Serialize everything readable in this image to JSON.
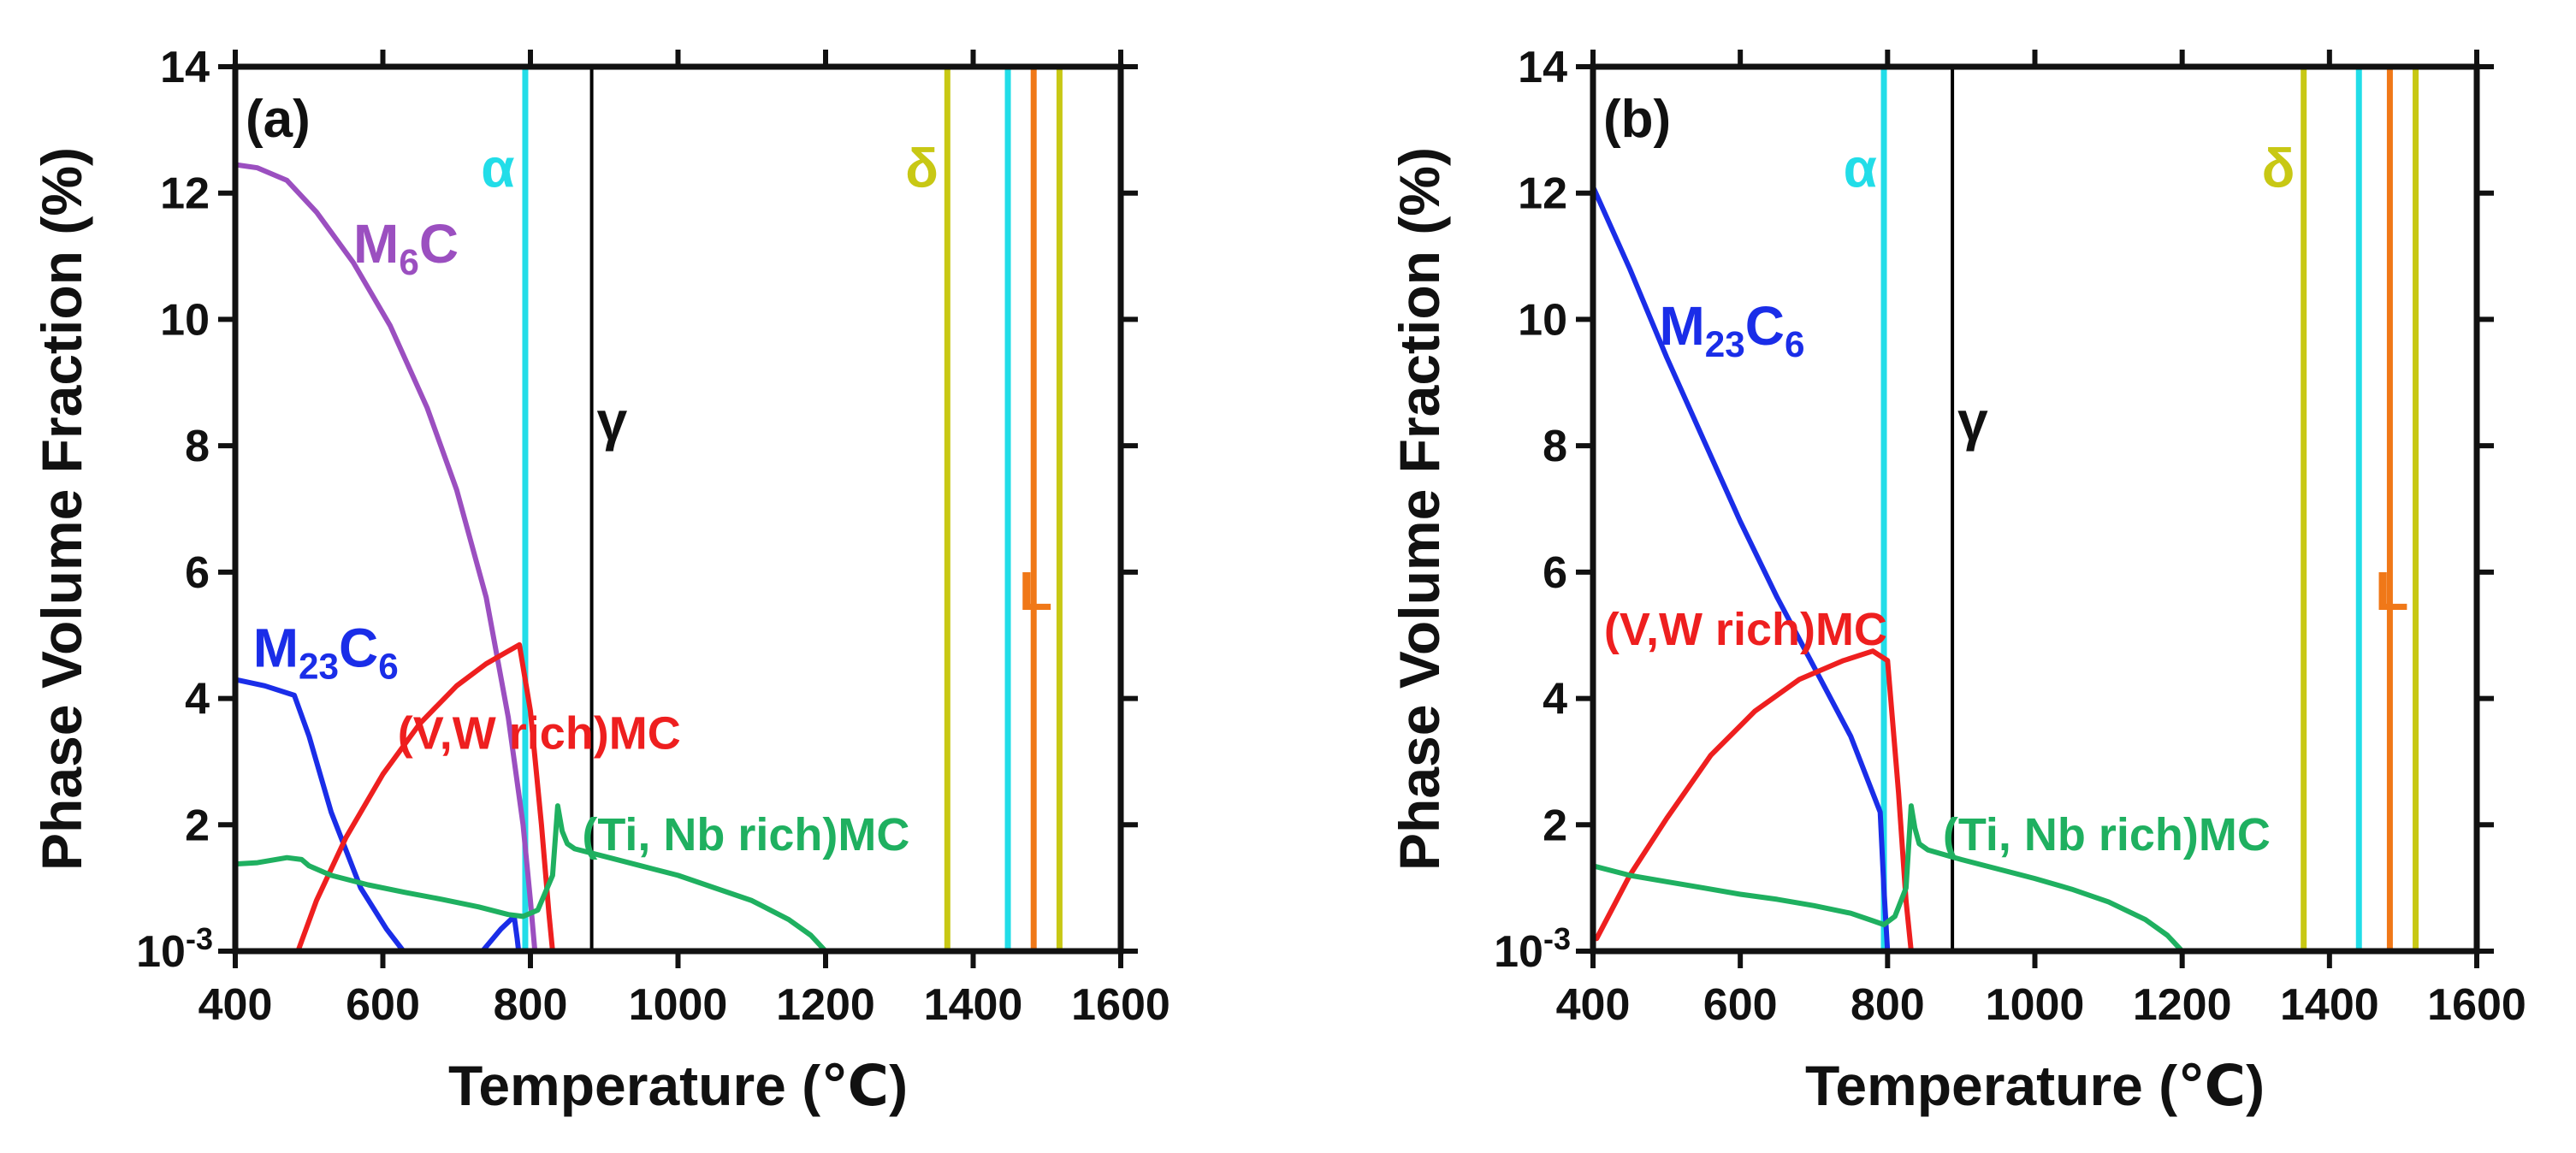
{
  "chart_data": [
    {
      "type": "line",
      "panel": "(a)",
      "xlabel": "Temperature (℃)",
      "ylabel": "Phase Volume Fraction (%)",
      "xlim": [
        400,
        1600
      ],
      "ylim": [
        0,
        14
      ],
      "x_ticks": [
        400,
        600,
        800,
        1000,
        1200,
        1400,
        1600
      ],
      "y_ticks": [
        {
          "value": 0,
          "label": "10",
          "sup": "-3"
        },
        {
          "value": 2,
          "label": "2"
        },
        {
          "value": 4,
          "label": "4"
        },
        {
          "value": 6,
          "label": "6"
        },
        {
          "value": 8,
          "label": "8"
        },
        {
          "value": 10,
          "label": "10"
        },
        {
          "value": 12,
          "label": "12"
        },
        {
          "value": 14,
          "label": "14"
        }
      ],
      "series": [
        {
          "name": "M6C",
          "color": "#9b4fc0",
          "x": [
            400,
            430,
            470,
            510,
            560,
            610,
            660,
            700,
            740,
            770,
            790,
            800,
            806
          ],
          "y": [
            12.45,
            12.4,
            12.2,
            11.7,
            10.9,
            9.9,
            8.6,
            7.3,
            5.6,
            3.7,
            2.0,
            0.8,
            0
          ]
        },
        {
          "name": "M23C6",
          "color": "#1a2de8",
          "x": [
            400,
            440,
            480,
            500,
            530,
            570,
            605,
            628
          ],
          "y": [
            4.3,
            4.2,
            4.05,
            3.4,
            2.2,
            1.0,
            0.35,
            0
          ]
        },
        {
          "name": "M23C6 (high-T segment)",
          "color": "#1a2de8",
          "x": [
            735,
            760,
            778,
            782,
            784
          ],
          "y": [
            0,
            0.35,
            0.55,
            0.2,
            0
          ]
        },
        {
          "name": "(V,W rich)MC",
          "color": "#ee1f1f",
          "x": [
            485,
            510,
            550,
            600,
            650,
            700,
            740,
            770,
            785,
            800,
            815,
            825,
            830
          ],
          "y": [
            0,
            0.8,
            1.8,
            2.8,
            3.6,
            4.2,
            4.55,
            4.75,
            4.85,
            3.8,
            2.0,
            0.6,
            0
          ]
        },
        {
          "name": "(Ti, Nb rich)MC",
          "color": "#1fb060",
          "x": [
            400,
            430,
            470,
            490,
            500,
            530,
            580,
            630,
            680,
            730,
            770,
            790,
            810,
            830,
            837,
            843,
            850,
            860,
            900,
            950,
            1000,
            1050,
            1100,
            1150,
            1180,
            1200
          ],
          "y": [
            1.38,
            1.4,
            1.48,
            1.45,
            1.35,
            1.2,
            1.05,
            0.93,
            0.82,
            0.7,
            0.58,
            0.55,
            0.65,
            1.2,
            2.3,
            1.9,
            1.7,
            1.62,
            1.5,
            1.35,
            1.2,
            1.0,
            0.8,
            0.5,
            0.25,
            0
          ]
        }
      ],
      "phase_boundaries": [
        {
          "phase": "α",
          "x": 793,
          "color": "#22dde8"
        },
        {
          "phase": "γ",
          "x": 883,
          "color": "#000000"
        },
        {
          "phase": "δ",
          "x": 1365,
          "color": "#c8c814"
        },
        {
          "phase": "α",
          "x": 1447,
          "color": "#22dde8"
        },
        {
          "phase": "L",
          "x": 1482,
          "color": "#f07818"
        },
        {
          "phase": "δ",
          "x": 1517,
          "color": "#c8c814"
        }
      ],
      "annotations": [
        {
          "base": "M",
          "sub": "6",
          "tail": "C",
          "x": 560,
          "y": 10.9,
          "color": "#9b4fc0"
        },
        {
          "base": "M",
          "sub": "23",
          "tail": "C",
          "sub2": "6",
          "x": 424,
          "y": 4.5,
          "color": "#1a2de8"
        },
        {
          "base": "(V,W rich)MC",
          "x": 620,
          "y": 3.2,
          "color": "#ee1f1f"
        },
        {
          "base": "(Ti, Nb rich)MC",
          "x": 870,
          "y": 1.6,
          "color": "#1fb060"
        },
        {
          "base": "α",
          "x": 733,
          "y": 12.1,
          "color": "#22dde8"
        },
        {
          "base": "γ",
          "x": 890,
          "y": 8.1,
          "color": "#111111"
        },
        {
          "base": "δ",
          "x": 1308,
          "y": 12.1,
          "color": "#c8c814"
        },
        {
          "base": "L",
          "x": 1462,
          "y": 5.4,
          "color": "#f07818"
        }
      ]
    },
    {
      "type": "line",
      "panel": "(b)",
      "xlabel": "Temperature (℃)",
      "ylabel": "Phase Volume Fraction (%)",
      "xlim": [
        400,
        1600
      ],
      "ylim": [
        0,
        14
      ],
      "x_ticks": [
        400,
        600,
        800,
        1000,
        1200,
        1400,
        1600
      ],
      "y_ticks": [
        {
          "value": 0,
          "label": "10",
          "sup": "-3"
        },
        {
          "value": 2,
          "label": "2"
        },
        {
          "value": 4,
          "label": "4"
        },
        {
          "value": 6,
          "label": "6"
        },
        {
          "value": 8,
          "label": "8"
        },
        {
          "value": 10,
          "label": "10"
        },
        {
          "value": 12,
          "label": "12"
        },
        {
          "value": 14,
          "label": "14"
        }
      ],
      "series": [
        {
          "name": "M23C6",
          "color": "#1a2de8",
          "x": [
            400,
            450,
            500,
            550,
            600,
            650,
            700,
            750,
            790,
            795,
            800
          ],
          "y": [
            12.1,
            10.8,
            9.4,
            8.1,
            6.8,
            5.6,
            4.5,
            3.4,
            2.2,
            1.0,
            0
          ]
        },
        {
          "name": "(V,W rich)MC",
          "color": "#ee1f1f",
          "x": [
            405,
            450,
            500,
            560,
            620,
            680,
            740,
            780,
            800,
            815,
            825,
            832
          ],
          "y": [
            0.2,
            1.2,
            2.1,
            3.1,
            3.8,
            4.3,
            4.6,
            4.75,
            4.6,
            2.5,
            0.8,
            0
          ]
        },
        {
          "name": "(Ti, Nb rich)MC",
          "color": "#1fb060",
          "x": [
            400,
            450,
            500,
            550,
            600,
            650,
            700,
            750,
            780,
            795,
            810,
            825,
            832,
            837,
            843,
            855,
            900,
            950,
            1000,
            1050,
            1100,
            1150,
            1180,
            1200
          ],
          "y": [
            1.35,
            1.2,
            1.1,
            1.0,
            0.9,
            0.82,
            0.72,
            0.6,
            0.48,
            0.42,
            0.55,
            1.0,
            2.3,
            1.95,
            1.7,
            1.6,
            1.45,
            1.3,
            1.15,
            0.98,
            0.78,
            0.5,
            0.25,
            0
          ]
        }
      ],
      "phase_boundaries": [
        {
          "phase": "α",
          "x": 795,
          "color": "#22dde8"
        },
        {
          "phase": "γ",
          "x": 888,
          "color": "#000000"
        },
        {
          "phase": "δ",
          "x": 1365,
          "color": "#c8c814"
        },
        {
          "phase": "α",
          "x": 1440,
          "color": "#22dde8"
        },
        {
          "phase": "L",
          "x": 1482,
          "color": "#f07818"
        },
        {
          "phase": "δ",
          "x": 1517,
          "color": "#c8c814"
        }
      ],
      "annotations": [
        {
          "base": "M",
          "sub": "23",
          "tail": "C",
          "sub2": "6",
          "x": 490,
          "y": 9.6,
          "color": "#1a2de8"
        },
        {
          "base": "(V,W rich)MC",
          "x": 415,
          "y": 4.85,
          "color": "#ee1f1f"
        },
        {
          "base": "(Ti, Nb rich)MC",
          "x": 875,
          "y": 1.6,
          "color": "#1fb060"
        },
        {
          "base": "α",
          "x": 740,
          "y": 12.1,
          "color": "#22dde8"
        },
        {
          "base": "γ",
          "x": 895,
          "y": 8.1,
          "color": "#111111"
        },
        {
          "base": "δ",
          "x": 1308,
          "y": 12.1,
          "color": "#c8c814"
        },
        {
          "base": "L",
          "x": 1462,
          "y": 5.4,
          "color": "#f07818"
        }
      ]
    }
  ]
}
